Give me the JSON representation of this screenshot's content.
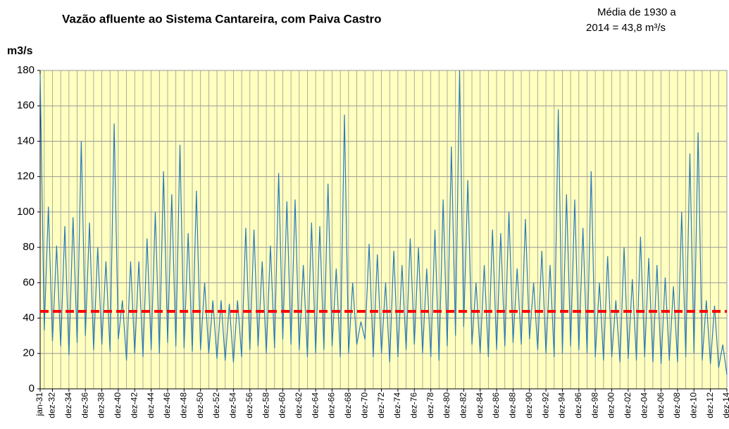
{
  "chart_data": {
    "type": "line",
    "title": "Vazão afluente ao Sistema Cantareira, com Paiva Castro",
    "annotation": [
      "Média de 1930 a",
      "2014 = 43,8 m³/s"
    ],
    "y_label": "m3/s",
    "categories": [
      "jan-31",
      null,
      null,
      "dez-32",
      null,
      null,
      null,
      "dez-34",
      null,
      null,
      null,
      "dez-36",
      null,
      null,
      null,
      "dez-38",
      null,
      null,
      null,
      "dez-40",
      null,
      null,
      null,
      "dez-42",
      null,
      null,
      null,
      "dez-44",
      null,
      null,
      null,
      "dez-46",
      null,
      null,
      null,
      "dez-48",
      null,
      null,
      null,
      "dez-50",
      null,
      null,
      null,
      "dez-52",
      null,
      null,
      null,
      "dez-54",
      null,
      null,
      null,
      "dez-56",
      null,
      null,
      null,
      "dez-58",
      null,
      null,
      null,
      "dez-60",
      null,
      null,
      null,
      "dez-62",
      null,
      null,
      null,
      "dez-64",
      null,
      null,
      null,
      "dez-66",
      null,
      null,
      null,
      "dez-68",
      null,
      null,
      null,
      "dez-70",
      null,
      null,
      null,
      "dez-72",
      null,
      null,
      null,
      "dez-74",
      null,
      null,
      null,
      "dez-76",
      null,
      null,
      null,
      "dez-78",
      null,
      null,
      null,
      "dez-80",
      null,
      null,
      null,
      "dez-82",
      null,
      null,
      null,
      "dez-84",
      null,
      null,
      null,
      "dez-86",
      null,
      null,
      null,
      "dez-88",
      null,
      null,
      null,
      "dez-90",
      null,
      null,
      null,
      "dez-92",
      null,
      null,
      null,
      "dez-94",
      null,
      null,
      null,
      "dez-96",
      null,
      null,
      null,
      "dez-98",
      null,
      null,
      null,
      "dez-00",
      null,
      null,
      null,
      "dez-02",
      null,
      null,
      null,
      "dez-04",
      null,
      null,
      null,
      "dez-06",
      null,
      null,
      null,
      "dez-08",
      null,
      null,
      null,
      "dez-10",
      null,
      null,
      null,
      "dez-12",
      null,
      null,
      null,
      "dez-14"
    ],
    "series": [
      {
        "name": "Vazão afluente",
        "color": "#2a7ab9",
        "values": [
          178,
          33,
          103,
          27,
          81,
          24,
          92,
          19,
          97,
          26,
          140,
          30,
          94,
          22,
          80,
          25,
          72,
          21,
          150,
          28,
          50,
          16,
          72,
          20,
          72,
          18,
          85,
          22,
          100,
          20,
          123,
          26,
          110,
          24,
          138,
          23,
          88,
          21,
          112,
          22,
          60,
          20,
          50,
          17,
          50,
          16,
          48,
          15,
          50,
          18,
          91,
          22,
          90,
          24,
          72,
          20,
          81,
          23,
          122,
          28,
          106,
          25,
          107,
          22,
          70,
          18,
          94,
          20,
          92,
          22,
          116,
          24,
          68,
          18,
          155,
          20,
          60,
          25,
          38,
          28,
          82,
          18,
          76,
          20,
          60,
          15,
          78,
          18,
          70,
          22,
          85,
          25,
          80,
          20,
          68,
          18,
          90,
          16,
          107,
          24,
          137,
          30,
          180,
          35,
          118,
          25,
          60,
          20,
          70,
          18,
          90,
          22,
          88,
          24,
          100,
          26,
          68,
          25,
          96,
          28,
          60,
          22,
          78,
          20,
          70,
          18,
          158,
          20,
          110,
          24,
          107,
          22,
          91,
          20,
          123,
          18,
          60,
          16,
          75,
          18,
          50,
          15,
          80,
          17,
          62,
          16,
          86,
          18,
          74,
          15,
          70,
          14,
          63,
          16,
          58,
          15,
          100,
          18,
          133,
          20,
          145,
          16,
          50,
          14,
          47,
          12,
          25,
          8
        ]
      }
    ],
    "reference_line": {
      "value": 43.8,
      "color": "#ff0000"
    },
    "ylim": [
      0,
      180
    ],
    "yticks": [
      0,
      20,
      40,
      60,
      80,
      100,
      120,
      140,
      160,
      180
    ],
    "grid": true,
    "background": "#ffffc0"
  }
}
